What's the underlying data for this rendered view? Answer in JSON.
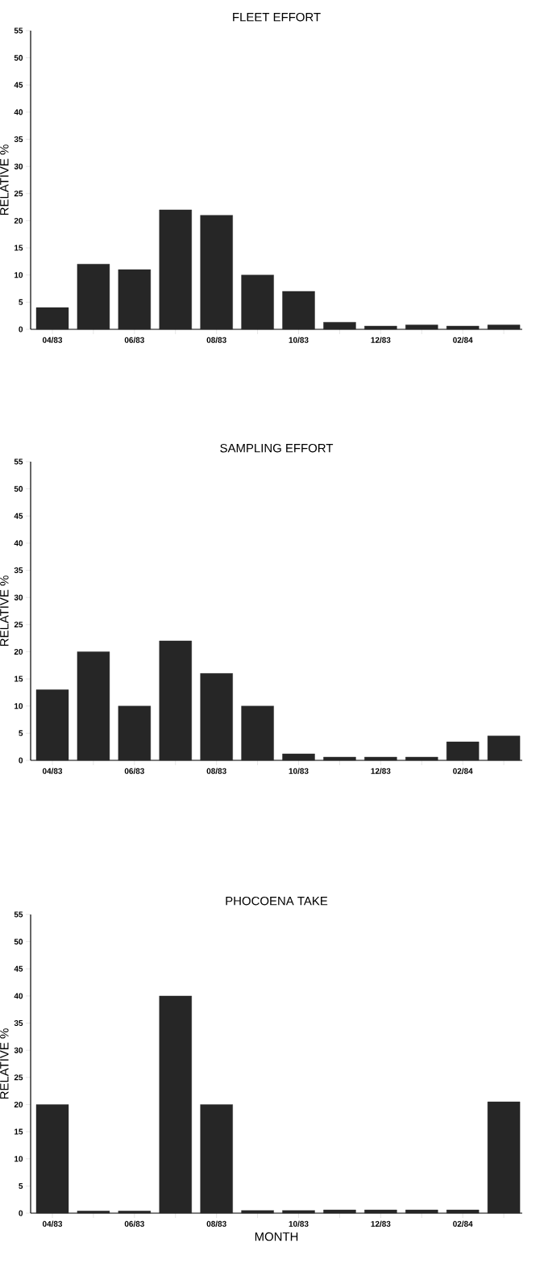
{
  "chart_data": [
    {
      "type": "bar",
      "title": "FLEET EFFORT",
      "ylabel": "RELATIVE %",
      "categories": [
        "04/83",
        null,
        "06/83",
        null,
        "08/83",
        null,
        "10/83",
        null,
        "12/83",
        null,
        "02/84",
        null
      ],
      "values": [
        4,
        12,
        11,
        22,
        21,
        10,
        7,
        1.3,
        0.6,
        0.8,
        0.6,
        0.8
      ],
      "color": "#262626",
      "ylim": [
        0,
        55
      ],
      "yticks": [
        0,
        5,
        10,
        15,
        20,
        25,
        30,
        35,
        40,
        45,
        50,
        55
      ]
    },
    {
      "type": "bar",
      "title": "SAMPLING EFFORT",
      "ylabel": "RELATIVE %",
      "categories": [
        "04/83",
        null,
        "06/83",
        null,
        "08/83",
        null,
        "10/83",
        null,
        "12/83",
        null,
        "02/84",
        null
      ],
      "values": [
        13,
        20,
        10,
        22,
        16,
        10,
        1.2,
        0.6,
        0.6,
        0.6,
        3.4,
        4.5
      ],
      "color": "#262626",
      "ylim": [
        0,
        55
      ],
      "yticks": [
        0,
        5,
        10,
        15,
        20,
        25,
        30,
        35,
        40,
        45,
        50,
        55
      ]
    },
    {
      "type": "bar",
      "title": "PHOCOENA TAKE",
      "xlabel": "MONTH",
      "ylabel": "RELATIVE %",
      "categories": [
        "04/83",
        null,
        "06/83",
        null,
        "08/83",
        null,
        "10/83",
        null,
        "12/83",
        null,
        "02/84",
        null
      ],
      "values": [
        20,
        0.4,
        0.4,
        40,
        20,
        0.5,
        0.5,
        0.6,
        0.6,
        0.6,
        0.6,
        20.5
      ],
      "color": "#262626",
      "ylim": [
        0,
        55
      ],
      "yticks": [
        0,
        5,
        10,
        15,
        20,
        25,
        30,
        35,
        40,
        45,
        50,
        55
      ]
    }
  ]
}
